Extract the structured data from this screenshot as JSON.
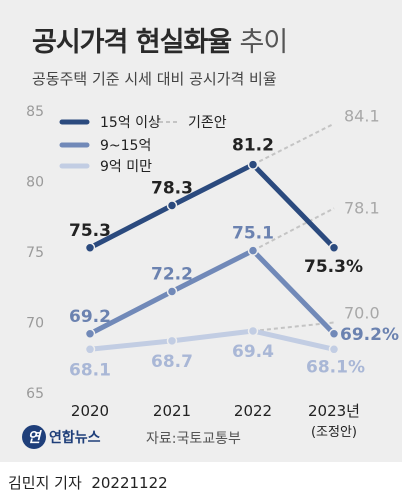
{
  "title_bold": "공시가격 현실화율",
  "title_light": "추이",
  "subtitle": "공동주택 기준 시세 대비 공시가격 비율",
  "source": "자료:국토교통부",
  "logo_text": "연합뉴스",
  "logo_mark": "연",
  "credit": "김민지 기자",
  "date": "20221122",
  "colors": {
    "background": "#eeeeee",
    "series_dark": "#2b4a7e",
    "series_mid": "#7189b8",
    "series_light": "#c2cde3",
    "existing_plan": "#c4c4c4",
    "label_text": "#222222"
  },
  "chart_data": {
    "type": "line",
    "x": [
      "2020",
      "2021",
      "2022",
      "2023년"
    ],
    "x_sublabel": "(조정안)",
    "ylim": [
      65,
      85
    ],
    "yticks": [
      65,
      70,
      75,
      80,
      85
    ],
    "grid": false,
    "legend_position": "top-left",
    "legend_extra": "기존안",
    "series": [
      {
        "name": "15억 이상",
        "values": [
          75.3,
          78.3,
          81.2,
          75.3
        ],
        "labels": [
          "75.3",
          "78.3",
          "81.2",
          "75.3%"
        ],
        "color_key": "series_dark",
        "existing_2023": 84.1,
        "existing_label": "84.1"
      },
      {
        "name": "9~15억",
        "values": [
          69.2,
          72.2,
          75.1,
          69.2
        ],
        "labels": [
          "69.2",
          "72.2",
          "75.1",
          "69.2%"
        ],
        "color_key": "series_mid",
        "existing_2023": 78.1,
        "existing_label": "78.1"
      },
      {
        "name": "9억 미만",
        "values": [
          68.1,
          68.7,
          69.4,
          68.1
        ],
        "labels": [
          "68.1",
          "68.7",
          "69.4",
          "68.1%"
        ],
        "color_key": "series_light",
        "existing_2023": 70.0,
        "existing_label": "70.0"
      }
    ]
  }
}
